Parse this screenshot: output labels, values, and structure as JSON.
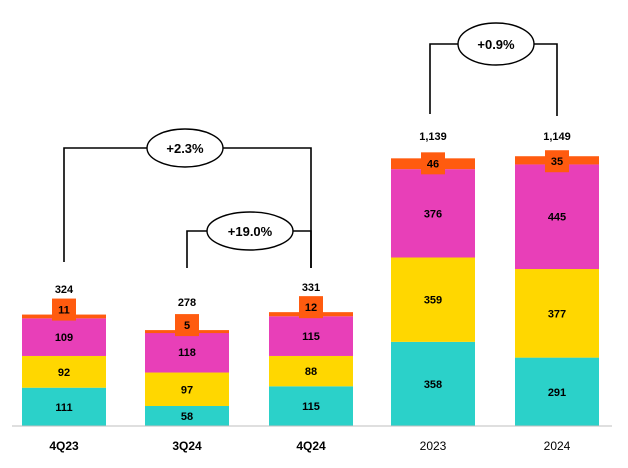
{
  "chart_data": {
    "type": "bar",
    "stacked": true,
    "title": "",
    "xlabel": "",
    "ylabel": "",
    "grid": false,
    "categories": [
      "4Q23",
      "3Q24",
      "4Q24",
      "2023",
      "2024"
    ],
    "series": [
      {
        "color": "#2BD1C9",
        "values": [
          111,
          58,
          115,
          358,
          291
        ]
      },
      {
        "color": "#FFD700",
        "values": [
          92,
          97,
          88,
          359,
          377
        ]
      },
      {
        "color": "#E83FB8",
        "values": [
          109,
          118,
          115,
          376,
          445
        ]
      },
      {
        "color": "#FF5B0F",
        "values": [
          11,
          5,
          12,
          46,
          35
        ]
      }
    ],
    "totals": [
      "324",
      "278",
      "331",
      "1,139",
      "1,149"
    ],
    "comparisons": [
      {
        "label": "+2.3%",
        "from": "4Q23",
        "to": "4Q24"
      },
      {
        "label": "+19.0%",
        "from": "3Q24",
        "to": "4Q24"
      },
      {
        "label": "+0.9%",
        "from": "2023",
        "to": "2024"
      }
    ],
    "colors": {
      "axis": "#BFBFBF",
      "text": "#000000",
      "connector": "#000000"
    }
  }
}
